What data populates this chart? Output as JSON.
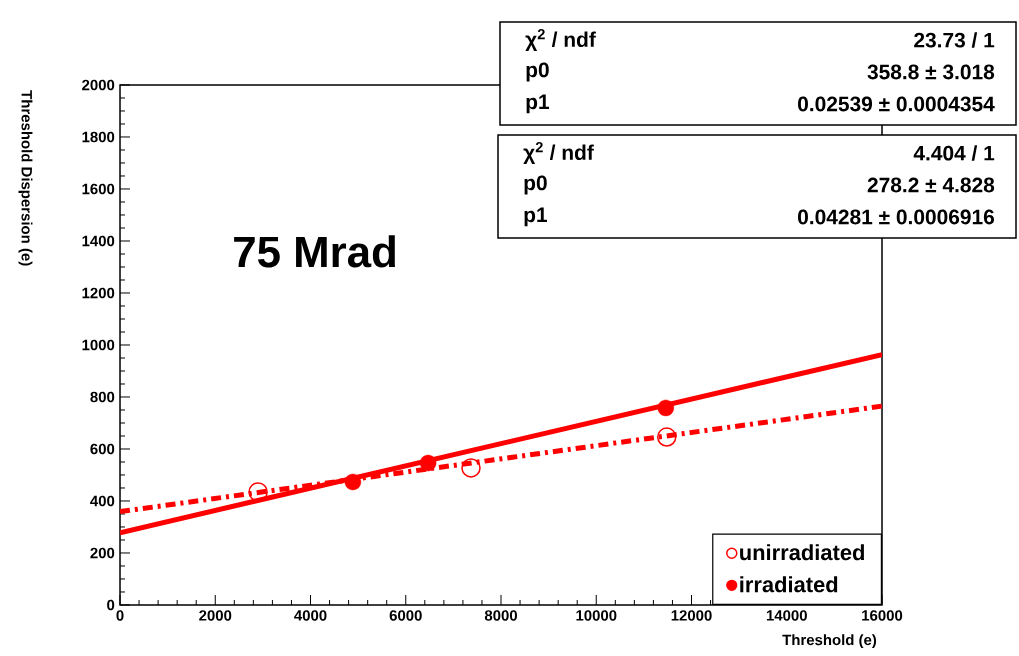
{
  "chart_data": {
    "type": "scatter",
    "xlabel": "Threshold (e)",
    "ylabel": "Threshold Dispersion (e)",
    "xlim": [
      0,
      16000
    ],
    "ylim": [
      0,
      2000
    ],
    "xticks": [
      0,
      2000,
      4000,
      6000,
      8000,
      10000,
      12000,
      14000,
      16000
    ],
    "yticks": [
      0,
      200,
      400,
      600,
      800,
      1000,
      1200,
      1400,
      1600,
      1800,
      2000
    ],
    "grid": false,
    "legend": "bottom right",
    "marker": "circle",
    "series": [
      {
        "name": "unirradiated",
        "color": "#ff0000",
        "x": [
          2900,
          7370,
          11480
        ],
        "values": [
          435,
          527,
          646
        ]
      },
      {
        "name": "irradiated",
        "color": "#ff0000",
        "x": [
          4890,
          6470,
          11460
        ],
        "values": [
          473,
          546,
          758
        ]
      },
      {
        "type": "line",
        "color": "#ff0000",
        "line_style": "dashed",
        "marker": "none",
        "x": [
          0,
          16000
        ],
        "values": [
          359,
          765
        ]
      },
      {
        "type": "line",
        "color": "#ff0000",
        "line_style": "solid",
        "marker": "none",
        "x": [
          0,
          16000
        ],
        "values": [
          278,
          963
        ]
      }
    ],
    "annotations": [
      "75 Mrad",
      "χ$^{2}$ / ndf",
      "23.73 / 1",
      "p0",
      "358.8 ± 3.018",
      "p1",
      "0.02539 ± 0.0004354",
      "χ$^{2}$ / ndf",
      "4.404 / 1",
      "p0",
      "278.2 ± 4.828",
      "p1",
      "0.04281 ± 0.0006916"
    ]
  }
}
